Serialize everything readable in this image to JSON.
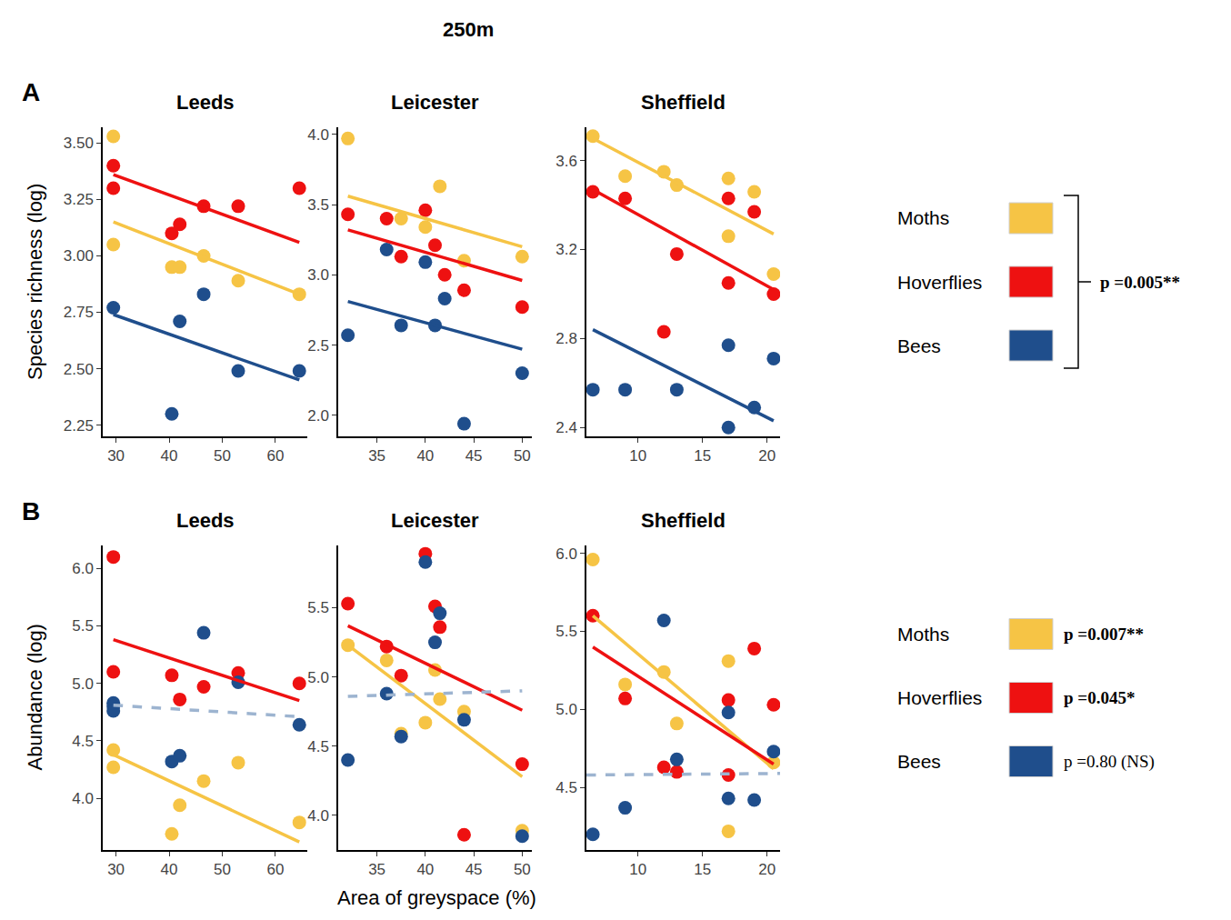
{
  "chart_data": {
    "type": "scatter",
    "title": "250m",
    "x_title": "Area of greyspace (%)",
    "panels": [
      {
        "letter": "A",
        "y_title": "Species richness (log)",
        "p_label": "p =0.005**",
        "legend_entries": [
          {
            "name": "Moths",
            "color": "#F6C445"
          },
          {
            "name": "Hoverflies",
            "color": "#EE1111"
          },
          {
            "name": "Bees",
            "color": "#1F4E8C"
          }
        ],
        "charts": [
          {
            "title": "Leeds",
            "xlim": [
              27.5,
              66
            ],
            "xticks": [
              30,
              40,
              50,
              60
            ],
            "ylim": [
              2.2,
              3.57
            ],
            "yticks": [
              2.25,
              {
                "value": 2.5,
                "label": "2.50"
              },
              2.75,
              {
                "value": 3.0,
                "label": "3.00"
              },
              3.25,
              {
                "value": 3.5,
                "label": "3.50"
              }
            ],
            "series": [
              {
                "name": "Moths",
                "color": "#F6C445",
                "x": [
                  29.5,
                  29.5,
                  40.5,
                  42,
                  46.5,
                  53,
                  64.5
                ],
                "values": [
                  3.53,
                  3.05,
                  2.95,
                  2.95,
                  3.0,
                  2.89,
                  2.83
                ],
                "fit": {
                  "x": [
                    29.5,
                    64.5
                  ],
                  "values": [
                    3.15,
                    2.83
                  ],
                  "line_style": "solid"
                }
              },
              {
                "name": "Hoverflies",
                "color": "#EE1111",
                "x": [
                  29.5,
                  29.5,
                  40.5,
                  42,
                  46.5,
                  53,
                  64.5
                ],
                "values": [
                  3.4,
                  3.3,
                  3.1,
                  3.14,
                  3.22,
                  3.22,
                  3.3
                ],
                "fit": {
                  "x": [
                    29.5,
                    64.5
                  ],
                  "values": [
                    3.36,
                    3.06
                  ],
                  "line_style": "solid"
                }
              },
              {
                "name": "Bees",
                "color": "#1F4E8C",
                "x": [
                  29.5,
                  40.5,
                  42,
                  46.5,
                  53,
                  64.5
                ],
                "values": [
                  2.77,
                  2.3,
                  2.71,
                  2.83,
                  2.49,
                  2.49
                ],
                "fit": {
                  "x": [
                    29.5,
                    64.5
                  ],
                  "values": [
                    2.74,
                    2.45
                  ],
                  "line_style": "solid"
                }
              }
            ]
          },
          {
            "title": "Leicester",
            "xlim": [
              31,
              51
            ],
            "xticks": [
              35,
              40,
              45,
              50
            ],
            "ylim": [
              1.85,
              4.05
            ],
            "yticks": [
              {
                "value": 2.0,
                "label": "2.0"
              },
              2.5,
              {
                "value": 3.0,
                "label": "3.0"
              },
              3.5,
              {
                "value": 4.0,
                "label": "4.0"
              }
            ],
            "series": [
              {
                "name": "Moths",
                "color": "#F6C445",
                "x": [
                  32,
                  37.5,
                  40,
                  41.5,
                  44,
                  50
                ],
                "values": [
                  3.97,
                  3.4,
                  3.34,
                  3.63,
                  3.1,
                  3.13
                ],
                "fit": {
                  "x": [
                    32,
                    50
                  ],
                  "values": [
                    3.56,
                    3.2
                  ],
                  "line_style": "solid"
                }
              },
              {
                "name": "Hoverflies",
                "color": "#EE1111",
                "x": [
                  32,
                  36,
                  37.5,
                  40,
                  41,
                  42,
                  44,
                  50
                ],
                "values": [
                  3.43,
                  3.4,
                  3.13,
                  3.46,
                  3.21,
                  3.0,
                  2.89,
                  2.77
                ],
                "fit": {
                  "x": [
                    32,
                    50
                  ],
                  "values": [
                    3.32,
                    2.96
                  ],
                  "line_style": "solid"
                }
              },
              {
                "name": "Bees",
                "color": "#1F4E8C",
                "x": [
                  32,
                  36,
                  37.5,
                  40,
                  41,
                  42,
                  44,
                  50
                ],
                "values": [
                  2.57,
                  3.18,
                  2.64,
                  3.09,
                  2.64,
                  2.83,
                  1.94,
                  2.3
                ],
                "fit": {
                  "x": [
                    32,
                    50
                  ],
                  "values": [
                    2.81,
                    2.47
                  ],
                  "line_style": "solid"
                }
              }
            ]
          },
          {
            "title": "Sheffield",
            "xlim": [
              6,
              21
            ],
            "xticks": [
              10,
              15,
              20
            ],
            "ylim": [
              2.36,
              3.75
            ],
            "yticks": [
              2.4,
              2.8,
              3.2,
              3.6
            ],
            "series": [
              {
                "name": "Moths",
                "color": "#F6C445",
                "x": [
                  6.5,
                  9,
                  12,
                  13,
                  17,
                  17,
                  19,
                  20.5
                ],
                "values": [
                  3.71,
                  3.53,
                  3.55,
                  3.49,
                  3.52,
                  3.26,
                  3.46,
                  3.09
                ],
                "fit": {
                  "x": [
                    6.5,
                    20.5
                  ],
                  "values": [
                    3.7,
                    3.27
                  ],
                  "line_style": "solid"
                }
              },
              {
                "name": "Hoverflies",
                "color": "#EE1111",
                "x": [
                  6.5,
                  9,
                  12,
                  13,
                  17,
                  17,
                  19,
                  20.5
                ],
                "values": [
                  3.46,
                  3.43,
                  2.83,
                  3.18,
                  3.43,
                  3.05,
                  3.37,
                  3.0
                ],
                "fit": {
                  "x": [
                    6.5,
                    20.5
                  ],
                  "values": [
                    3.47,
                    3.02
                  ],
                  "line_style": "solid"
                }
              },
              {
                "name": "Bees",
                "color": "#1F4E8C",
                "x": [
                  6.5,
                  9,
                  13,
                  17,
                  17,
                  19,
                  20.5
                ],
                "values": [
                  2.57,
                  2.57,
                  2.57,
                  2.77,
                  2.4,
                  2.49,
                  2.71
                ],
                "fit": {
                  "x": [
                    6.5,
                    20.5
                  ],
                  "values": [
                    2.84,
                    2.43
                  ],
                  "line_style": "solid"
                }
              }
            ]
          }
        ]
      },
      {
        "letter": "B",
        "y_title": "Abundance (log)",
        "legend_entries": [
          {
            "name": "Moths",
            "color": "#F6C445",
            "p_label": "p =0.007**"
          },
          {
            "name": "Hoverflies",
            "color": "#EE1111",
            "p_label": "p =0.045*"
          },
          {
            "name": "Bees",
            "color": "#1F4E8C",
            "p_label": "p =0.80 (NS)"
          }
        ],
        "charts": [
          {
            "title": "Leeds",
            "xlim": [
              27.5,
              66
            ],
            "xticks": [
              30,
              40,
              50,
              60
            ],
            "ylim": [
              3.55,
              6.2
            ],
            "yticks": [
              {
                "value": 4.0,
                "label": "4.0"
              },
              4.5,
              {
                "value": 5.0,
                "label": "5.0"
              },
              5.5,
              {
                "value": 6.0,
                "label": "6.0"
              }
            ],
            "series": [
              {
                "name": "Moths",
                "color": "#F6C445",
                "x": [
                  29.5,
                  29.5,
                  40.5,
                  42,
                  46.5,
                  53,
                  64.5
                ],
                "values": [
                  4.42,
                  4.27,
                  3.69,
                  3.94,
                  4.15,
                  4.31,
                  3.79
                ],
                "fit": {
                  "x": [
                    29.5,
                    64.5
                  ],
                  "values": [
                    4.38,
                    3.62
                  ],
                  "line_style": "solid"
                }
              },
              {
                "name": "Hoverflies",
                "color": "#EE1111",
                "x": [
                  29.5,
                  29.5,
                  40.5,
                  42,
                  46.5,
                  53,
                  64.5
                ],
                "values": [
                  6.1,
                  5.1,
                  5.07,
                  4.86,
                  4.97,
                  5.09,
                  5.0
                ],
                "fit": {
                  "x": [
                    29.5,
                    64.5
                  ],
                  "values": [
                    5.38,
                    4.85
                  ],
                  "line_style": "solid"
                }
              },
              {
                "name": "Bees",
                "color": "#1F4E8C",
                "x": [
                  29.5,
                  29.5,
                  29.5,
                  40.5,
                  42,
                  46.5,
                  53,
                  64.5
                ],
                "values": [
                  4.83,
                  4.8,
                  4.76,
                  4.32,
                  4.37,
                  5.44,
                  5.01,
                  4.64
                ],
                "fit": {
                  "x": [
                    29.5,
                    64.5
                  ],
                  "values": [
                    4.81,
                    4.71
                  ],
                  "line_style": "dashed",
                  "color": "#9DB4D0"
                }
              }
            ]
          },
          {
            "title": "Leicester",
            "xlim": [
              31,
              51
            ],
            "xticks": [
              35,
              40,
              45,
              50
            ],
            "ylim": [
              3.75,
              5.95
            ],
            "yticks": [
              {
                "value": 4.0,
                "label": "4.0"
              },
              4.5,
              {
                "value": 5.0,
                "label": "5.0"
              },
              5.5
            ],
            "series": [
              {
                "name": "Moths",
                "color": "#F6C445",
                "x": [
                  32,
                  36,
                  37.5,
                  40,
                  41,
                  41.5,
                  44,
                  50
                ],
                "values": [
                  5.23,
                  5.12,
                  4.59,
                  4.67,
                  5.05,
                  4.84,
                  4.75,
                  3.89
                ],
                "fit": {
                  "x": [
                    32,
                    50
                  ],
                  "values": [
                    5.23,
                    4.28
                  ],
                  "line_style": "solid"
                }
              },
              {
                "name": "Hoverflies",
                "color": "#EE1111",
                "x": [
                  32,
                  36,
                  37.5,
                  40,
                  41,
                  41.5,
                  44,
                  50
                ],
                "values": [
                  5.53,
                  5.22,
                  5.01,
                  5.89,
                  5.51,
                  5.36,
                  3.86,
                  4.37
                ],
                "fit": {
                  "x": [
                    32,
                    50
                  ],
                  "values": [
                    5.37,
                    4.76
                  ],
                  "line_style": "solid"
                }
              },
              {
                "name": "Bees",
                "color": "#1F4E8C",
                "x": [
                  32,
                  36,
                  37.5,
                  40,
                  41,
                  41.5,
                  44,
                  50
                ],
                "values": [
                  4.4,
                  4.88,
                  4.57,
                  5.83,
                  5.25,
                  5.46,
                  4.69,
                  3.85
                ],
                "fit": {
                  "x": [
                    32,
                    50
                  ],
                  "values": [
                    4.86,
                    4.9
                  ],
                  "line_style": "dashed",
                  "color": "#9DB4D0"
                }
              }
            ]
          },
          {
            "title": "Sheffield",
            "xlim": [
              6,
              21
            ],
            "xticks": [
              10,
              15,
              20
            ],
            "ylim": [
              4.1,
              6.05
            ],
            "yticks": [
              4.5,
              {
                "value": 5.0,
                "label": "5.0"
              },
              5.5,
              {
                "value": 6.0,
                "label": "6.0"
              }
            ],
            "series": [
              {
                "name": "Moths",
                "color": "#F6C445",
                "x": [
                  6.5,
                  9,
                  12,
                  13,
                  17,
                  17,
                  20.5
                ],
                "values": [
                  5.96,
                  5.16,
                  5.24,
                  4.91,
                  5.31,
                  4.22,
                  4.66
                ],
                "fit": {
                  "x": [
                    6.5,
                    20.5
                  ],
                  "values": [
                    5.6,
                    4.62
                  ],
                  "line_style": "solid"
                }
              },
              {
                "name": "Hoverflies",
                "color": "#EE1111",
                "x": [
                  6.5,
                  9,
                  12,
                  13,
                  17,
                  17,
                  19,
                  20.5
                ],
                "values": [
                  5.6,
                  5.07,
                  4.63,
                  4.6,
                  5.06,
                  4.58,
                  5.39,
                  5.03
                ],
                "fit": {
                  "x": [
                    6.5,
                    20.5
                  ],
                  "values": [
                    5.4,
                    4.65
                  ],
                  "line_style": "solid"
                }
              },
              {
                "name": "Bees",
                "color": "#1F4E8C",
                "x": [
                  6.5,
                  9,
                  12,
                  13,
                  17,
                  17,
                  19,
                  20.5
                ],
                "values": [
                  4.2,
                  4.37,
                  5.57,
                  4.68,
                  4.98,
                  4.43,
                  4.42,
                  4.73
                ],
                "fit": {
                  "x": [
                    6,
                    21
                  ],
                  "values": [
                    4.58,
                    4.59
                  ],
                  "line_style": "dashed",
                  "color": "#9DB4D0"
                }
              }
            ]
          }
        ]
      }
    ]
  }
}
